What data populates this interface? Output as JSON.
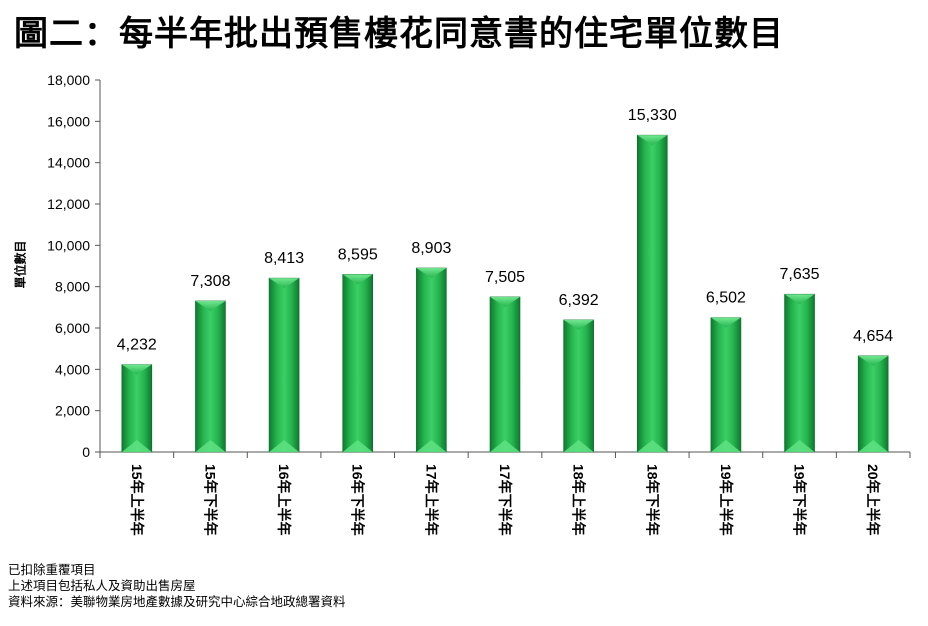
{
  "title": "圖二：每半年批出預售樓花同意書的住宅單位數目",
  "notes": [
    "已扣除重覆項目",
    "上述項目包括私人及資助出售房屋",
    "資料來源：美聯物業房地產數據及研究中心綜合地政總署資料"
  ],
  "chart_data": {
    "type": "bar",
    "ylabel": "單位數目",
    "xlabel": "",
    "ylim": [
      0,
      18000
    ],
    "yticks": [
      "0",
      "2,000",
      "4,000",
      "6,000",
      "8,000",
      "10,000",
      "12,000",
      "14,000",
      "16,000",
      "18,000"
    ],
    "categories": [
      "15年上半年",
      "15年下半年",
      "16年上半年",
      "16年下半年",
      "17年上半年",
      "17年下半年",
      "18年上半年",
      "18年下半年",
      "19年上半年",
      "19年下半年",
      "20年上半年"
    ],
    "values": [
      4232,
      7308,
      8413,
      8595,
      8903,
      7505,
      6392,
      15330,
      6502,
      7635,
      4654
    ],
    "value_labels": [
      "4,232",
      "7,308",
      "8,413",
      "8,595",
      "8,903",
      "7,505",
      "6,392",
      "15,330",
      "6,502",
      "7,635",
      "4,654"
    ],
    "bar_color": "#22b14c",
    "grid": false,
    "legend": "none"
  }
}
